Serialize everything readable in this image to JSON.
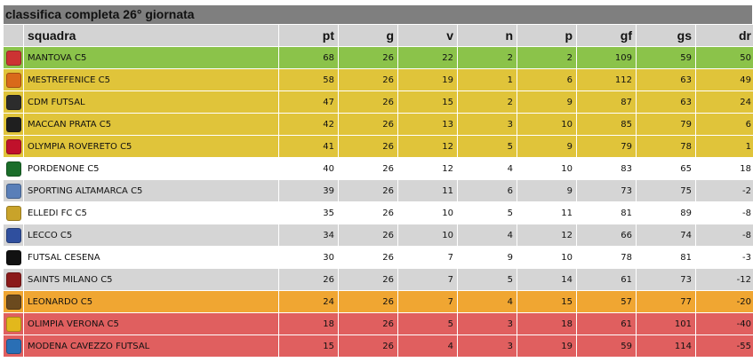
{
  "title": "classifica completa 26° giornata",
  "headers": {
    "squadra": "squadra",
    "pt": "pt",
    "g": "g",
    "v": "v",
    "n": "n",
    "p": "p",
    "gf": "gf",
    "gs": "gs",
    "dr": "dr"
  },
  "colors": {
    "header_bg": "#d3d3d3",
    "title_bg": "#7f7f7f",
    "green": "#8bc34a",
    "yellow": "#e0c43a",
    "white": "#ffffff",
    "grey": "#d5d5d5",
    "orange": "#f0a632",
    "red": "#e05f5f"
  },
  "rows": [
    {
      "team": "MANTOVA C5",
      "pt": "68",
      "g": "26",
      "v": "22",
      "n": "2",
      "p": "2",
      "gf": "109",
      "gs": "59",
      "dr": "50",
      "zone": "green",
      "logo_icon": "mantova-crest-icon",
      "logo_color": "#c33"
    },
    {
      "team": "MESTREFENICE C5",
      "pt": "58",
      "g": "26",
      "v": "19",
      "n": "1",
      "p": "6",
      "gf": "112",
      "gs": "63",
      "dr": "49",
      "zone": "yellow",
      "logo_icon": "mestrefenice-crest-icon",
      "logo_color": "#d96a1a"
    },
    {
      "team": "CDM FUTSAL",
      "pt": "47",
      "g": "26",
      "v": "15",
      "n": "2",
      "p": "9",
      "gf": "87",
      "gs": "63",
      "dr": "24",
      "zone": "yellow",
      "logo_icon": "cdm-crest-icon",
      "logo_color": "#2c2c2c"
    },
    {
      "team": "MACCAN PRATA C5",
      "pt": "42",
      "g": "26",
      "v": "13",
      "n": "3",
      "p": "10",
      "gf": "85",
      "gs": "79",
      "dr": "6",
      "zone": "yellow",
      "logo_icon": "maccan-crest-icon",
      "logo_color": "#1f1f1f"
    },
    {
      "team": "OLYMPIA ROVERETO C5",
      "pt": "41",
      "g": "26",
      "v": "12",
      "n": "5",
      "p": "9",
      "gf": "79",
      "gs": "78",
      "dr": "1",
      "zone": "yellow",
      "logo_icon": "olympia-rovereto-crest-icon",
      "logo_color": "#c0112b"
    },
    {
      "team": "PORDENONE C5",
      "pt": "40",
      "g": "26",
      "v": "12",
      "n": "4",
      "p": "10",
      "gf": "83",
      "gs": "65",
      "dr": "18",
      "zone": "white",
      "logo_icon": "pordenone-crest-icon",
      "logo_color": "#1b6e2a"
    },
    {
      "team": "SPORTING ALTAMARCA C5",
      "pt": "39",
      "g": "26",
      "v": "11",
      "n": "6",
      "p": "9",
      "gf": "73",
      "gs": "75",
      "dr": "-2",
      "zone": "grey",
      "logo_icon": "altamarca-crest-icon",
      "logo_color": "#5a7fb8"
    },
    {
      "team": "ELLEDI FC C5",
      "pt": "35",
      "g": "26",
      "v": "10",
      "n": "5",
      "p": "11",
      "gf": "81",
      "gs": "89",
      "dr": "-8",
      "zone": "white",
      "logo_icon": "elledi-crest-icon",
      "logo_color": "#c9a32a"
    },
    {
      "team": "LECCO C5",
      "pt": "34",
      "g": "26",
      "v": "10",
      "n": "4",
      "p": "12",
      "gf": "66",
      "gs": "74",
      "dr": "-8",
      "zone": "grey",
      "logo_icon": "lecco-crest-icon",
      "logo_color": "#2f4f9e"
    },
    {
      "team": "FUTSAL CESENA",
      "pt": "30",
      "g": "26",
      "v": "7",
      "n": "9",
      "p": "10",
      "gf": "78",
      "gs": "81",
      "dr": "-3",
      "zone": "white",
      "logo_icon": "cesena-crest-icon",
      "logo_color": "#111111"
    },
    {
      "team": "SAINTS MILANO C5",
      "pt": "26",
      "g": "26",
      "v": "7",
      "n": "5",
      "p": "14",
      "gf": "61",
      "gs": "73",
      "dr": "-12",
      "zone": "grey",
      "logo_icon": "saints-crest-icon",
      "logo_color": "#8b1a1a"
    },
    {
      "team": "LEONARDO C5",
      "pt": "24",
      "g": "26",
      "v": "7",
      "n": "4",
      "p": "15",
      "gf": "57",
      "gs": "77",
      "dr": "-20",
      "zone": "orange",
      "logo_icon": "leonardo-crest-icon",
      "logo_color": "#6b4a1e"
    },
    {
      "team": "OLIMPIA VERONA C5",
      "pt": "18",
      "g": "26",
      "v": "5",
      "n": "3",
      "p": "18",
      "gf": "61",
      "gs": "101",
      "dr": "-40",
      "zone": "red",
      "logo_icon": "olimpia-verona-crest-icon",
      "logo_color": "#e2b81c"
    },
    {
      "team": "MODENA CAVEZZO FUTSAL",
      "pt": "15",
      "g": "26",
      "v": "4",
      "n": "3",
      "p": "19",
      "gf": "59",
      "gs": "114",
      "dr": "-55",
      "zone": "red",
      "logo_icon": "modena-cavezzo-crest-icon",
      "logo_color": "#2a6fb5"
    }
  ]
}
